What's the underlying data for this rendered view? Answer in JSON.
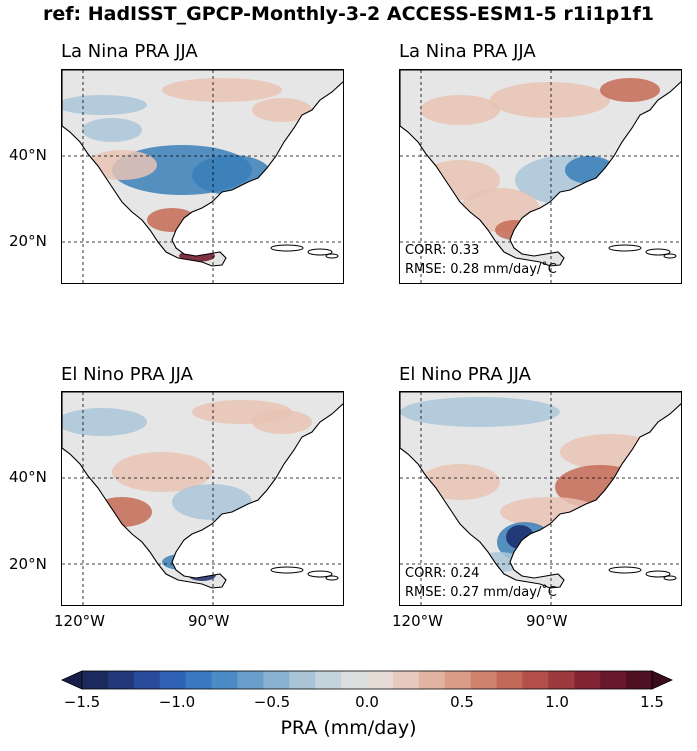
{
  "chart_data": {
    "type": "heatmap",
    "title": "ref: HadISST_GPCP-Monthly-3-2 ACCESS-ESM1-5 r1i1p1f1",
    "panels": [
      {
        "title": "La Nina PRA JJA",
        "source": "reference",
        "corr": null,
        "rmse": null
      },
      {
        "title": "La Nina PRA JJA",
        "source": "model",
        "corr": "CORR: 0.33",
        "rmse": "RMSE: 0.28 mm/day/$^\\circ$C"
      },
      {
        "title": "El Nino PRA JJA",
        "source": "reference",
        "corr": null,
        "rmse": null
      },
      {
        "title": "El Nino PRA JJA",
        "source": "model",
        "corr": "CORR: 0.24",
        "rmse": "RMSE: 0.27 mm/day/$^\\circ$C"
      }
    ],
    "lat_ticks": [
      "20°N",
      "40°N"
    ],
    "lon_ticks": [
      "120°W",
      "90°W"
    ],
    "colorbar": {
      "label": "PRA (mm/day)",
      "range": [
        -1.5,
        1.5
      ],
      "ticks": [
        "−1.5",
        "−1.0",
        "−0.5",
        "0.0",
        "0.5",
        "1.0",
        "1.5"
      ],
      "colormap": "balance (blue-white-red)",
      "extend": "both"
    },
    "gridlines": true
  },
  "display": {
    "corr_1": "CORR: 0.33",
    "rmse_1": "RMSE: 0.28 mm/day/˚C",
    "corr_3": "CORR: 0.24",
    "rmse_3": "RMSE: 0.27 mm/day/˚C"
  },
  "colors": {
    "strong_neg": "#1a2d6b",
    "neg": "#3a7fb8",
    "light_neg": "#a9c6d8",
    "neutral": "#e6e6e6",
    "light_pos": "#e8c3b4",
    "pos": "#c66a55",
    "strong_pos": "#6d1424"
  }
}
